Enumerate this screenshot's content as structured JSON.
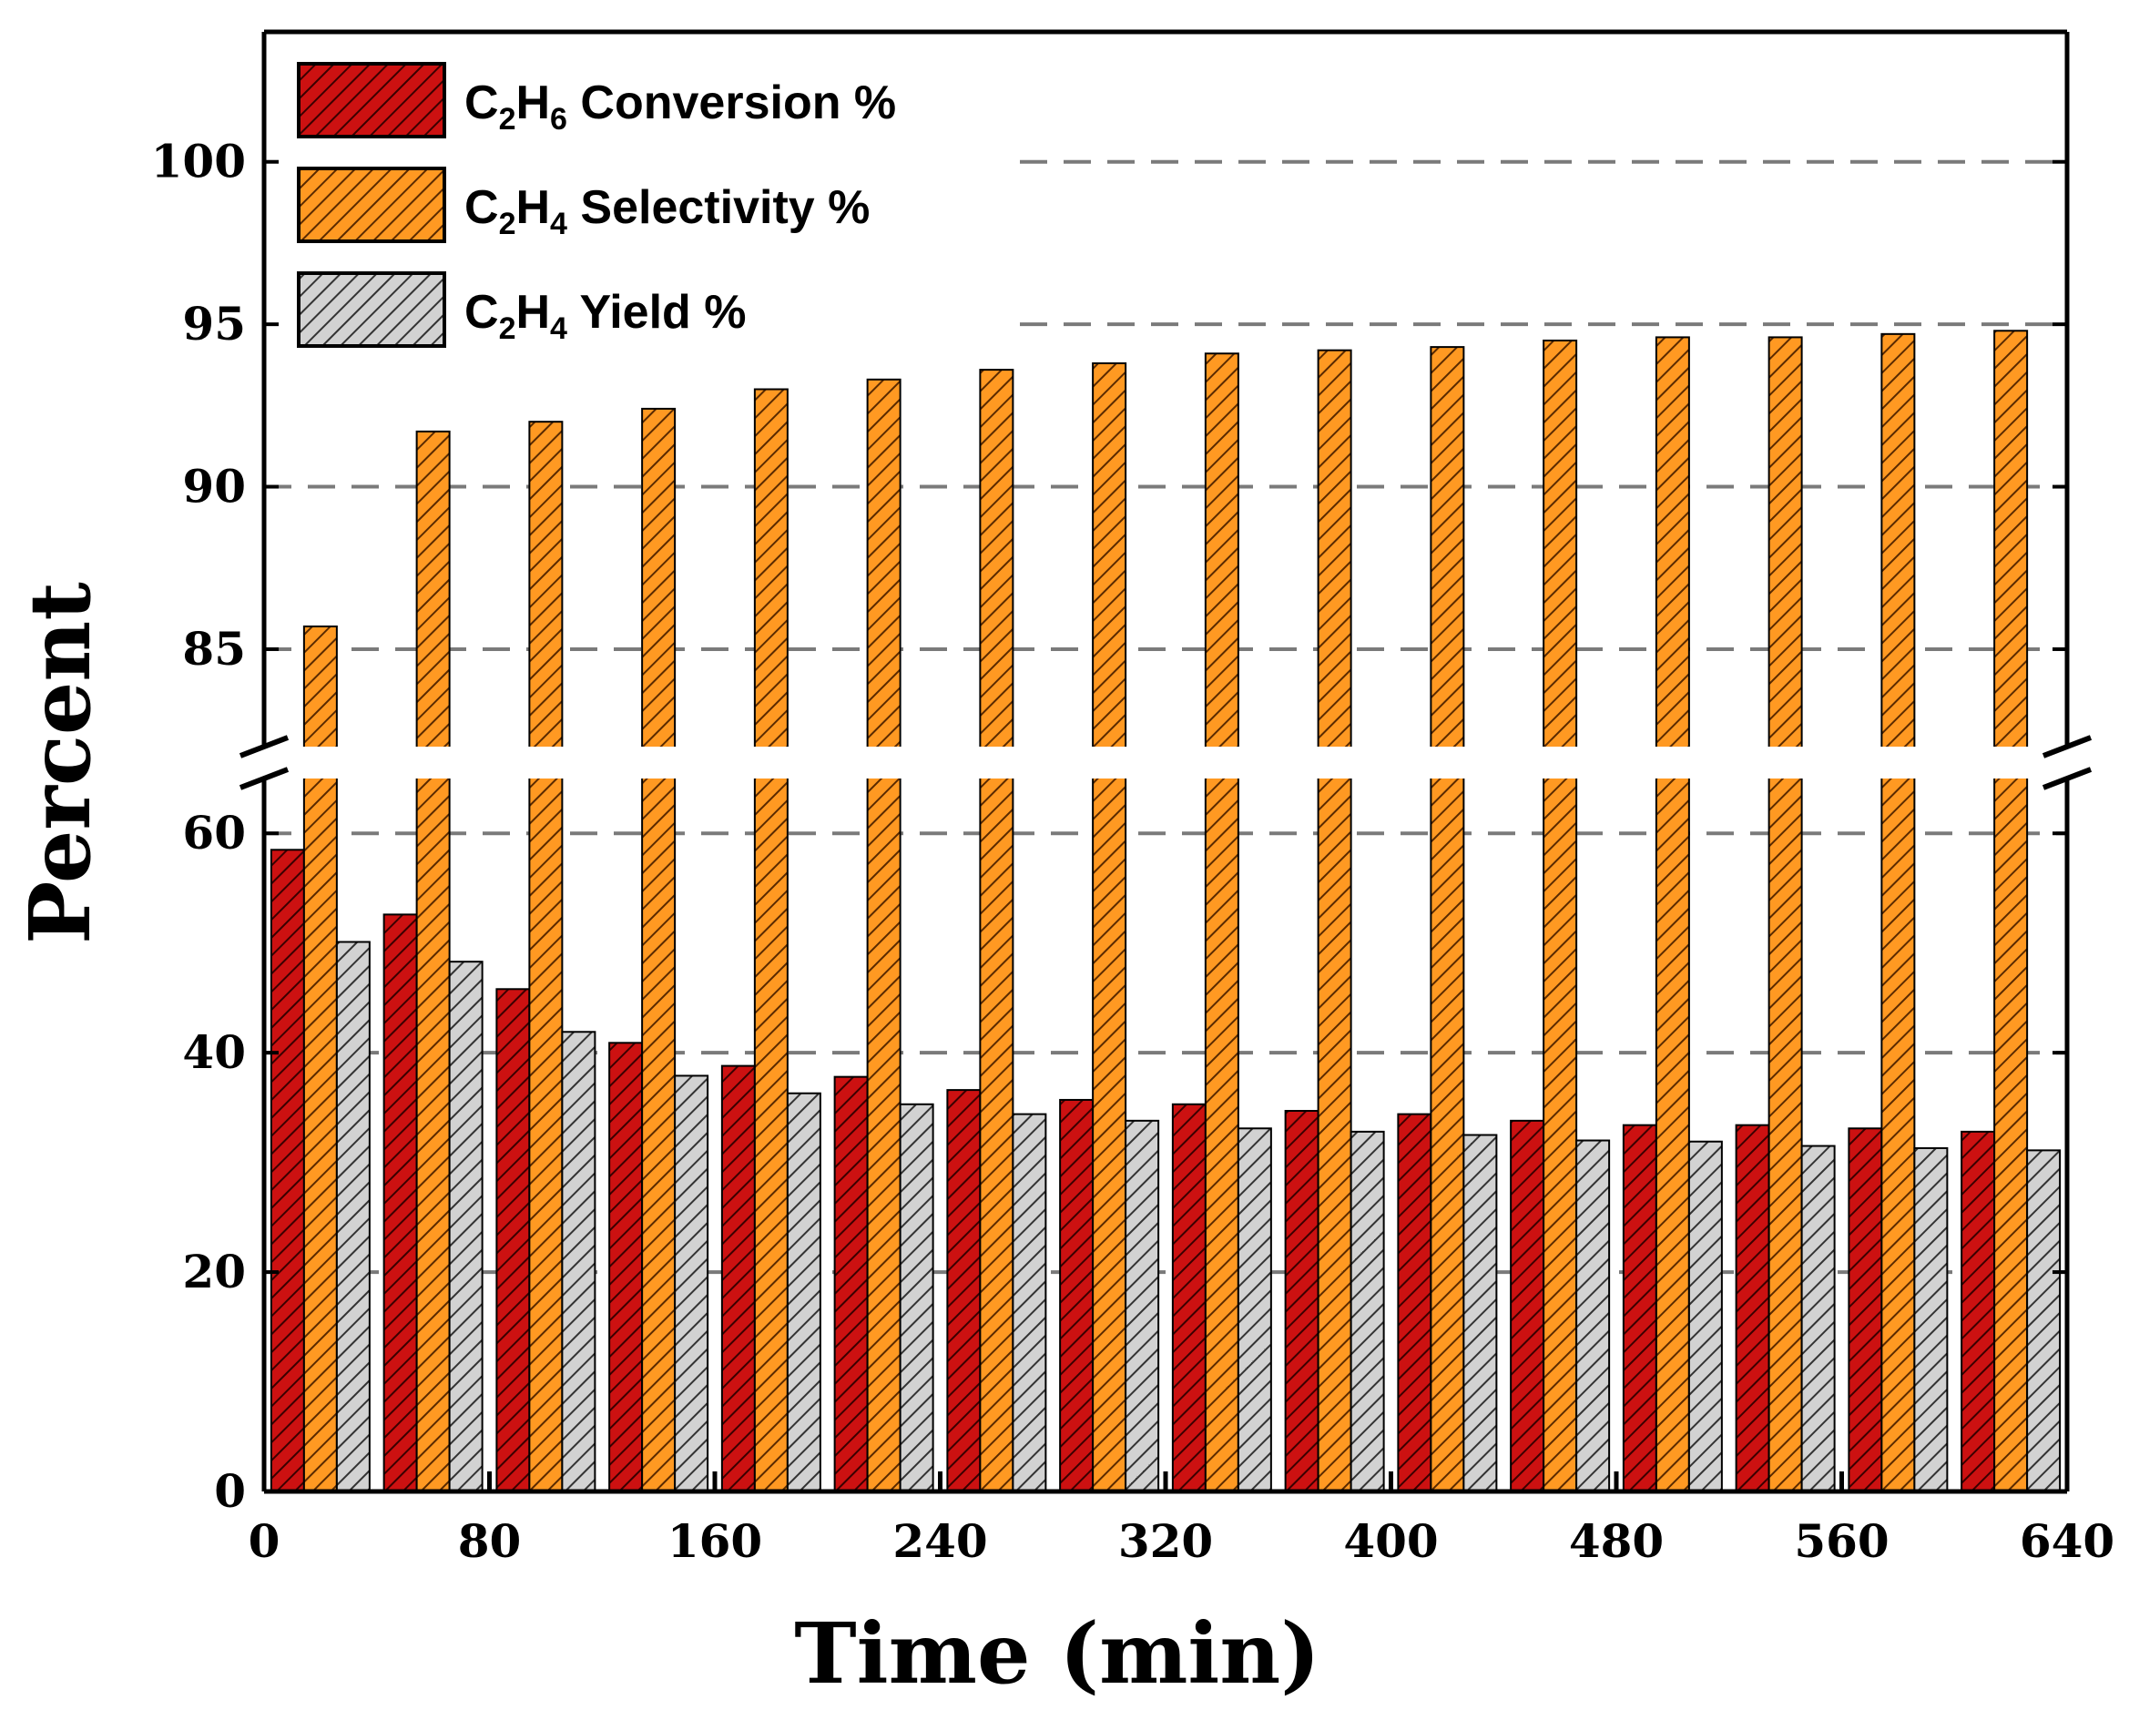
{
  "chart_data": {
    "type": "bar",
    "xlabel": "Time (min)",
    "ylabel": "Percent",
    "x_ticks": [
      0,
      80,
      160,
      240,
      320,
      400,
      480,
      560,
      640
    ],
    "x_range": [
      0,
      640
    ],
    "y_ticks_lower": [
      0,
      20,
      40,
      60
    ],
    "y_ticks_upper": [
      85,
      90,
      95,
      100
    ],
    "y_break": [
      65,
      82
    ],
    "y_range_lower": [
      0,
      65
    ],
    "y_range_upper": [
      82,
      104
    ],
    "grid": "dashed horizontal",
    "legend_position": "top-left",
    "categories": [
      20,
      60,
      100,
      140,
      180,
      220,
      260,
      300,
      340,
      380,
      420,
      460,
      500,
      540,
      580,
      620
    ],
    "series": [
      {
        "name": "C2H6 Conversion %",
        "legend": {
          "pre": "C",
          "sub1": "2",
          "mid": "H",
          "sub2": "6",
          "post": " Conversion %"
        },
        "color": "#cc1111",
        "values": [
          58.5,
          52.6,
          45.8,
          40.9,
          38.8,
          37.8,
          36.6,
          35.7,
          35.3,
          34.7,
          34.4,
          33.8,
          33.4,
          33.4,
          33.1,
          32.8
        ]
      },
      {
        "name": "C2H4 Selectivity %",
        "legend": {
          "pre": "C",
          "sub1": "2",
          "mid": "H",
          "sub2": "4",
          "post": " Selectivity %"
        },
        "color": "#ff9922",
        "values": [
          85.7,
          91.7,
          92.0,
          92.4,
          93.0,
          93.3,
          93.6,
          93.8,
          94.1,
          94.2,
          94.3,
          94.5,
          94.6,
          94.6,
          94.7,
          94.8
        ]
      },
      {
        "name": "C2H4 Yield %",
        "legend": {
          "pre": "C",
          "sub1": "2",
          "mid": "H",
          "sub2": "4",
          "post": " Yield %"
        },
        "color": "#c8c8c8",
        "values": [
          50.1,
          48.3,
          41.9,
          37.9,
          36.3,
          35.3,
          34.4,
          33.8,
          33.1,
          32.8,
          32.5,
          32.0,
          31.9,
          31.5,
          31.3,
          31.1
        ]
      }
    ]
  }
}
